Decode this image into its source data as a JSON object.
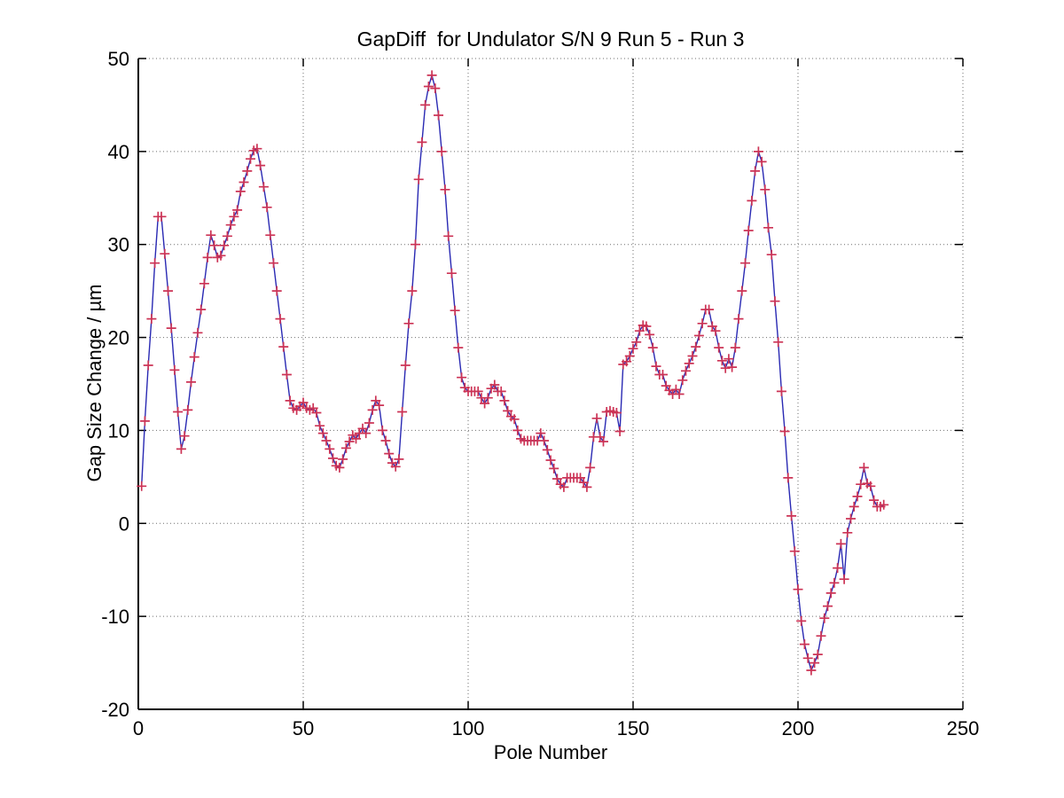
{
  "figure": {
    "background": "#ffffff"
  },
  "chart_data": {
    "type": "line",
    "title": "GapDiff  for Undulator S/N 9 Run 5 - Run 3",
    "xlabel": "Pole Number",
    "ylabel": "Gap Size Change / µm",
    "xlim": [
      0,
      250
    ],
    "ylim": [
      -20,
      50
    ],
    "xticks": [
      0,
      50,
      100,
      150,
      200,
      250
    ],
    "yticks": [
      -20,
      -10,
      0,
      10,
      20,
      30,
      40,
      50
    ],
    "grid": true,
    "grid_style": "dotted",
    "legend": "none",
    "line_color": "#2929b3",
    "marker": "+",
    "marker_color": "#cc3355",
    "axis_color": "#000000",
    "series": [
      {
        "x_start": 1,
        "x_step": 1,
        "y": [
          4,
          11,
          17,
          22,
          28,
          33,
          33,
          29,
          25,
          21,
          16.5,
          12,
          8,
          9.4,
          12.2,
          15.2,
          17.9,
          20.5,
          23,
          25.8,
          28.6,
          31,
          29.9,
          28.6,
          28.8,
          29.9,
          30.9,
          32.1,
          33,
          33.7,
          35.7,
          36.7,
          37.9,
          39.2,
          40.1,
          40.3,
          38.5,
          36.2,
          34,
          31,
          28,
          25,
          22,
          19,
          16,
          13.2,
          12.4,
          12.2,
          12.6,
          13,
          12.4,
          12.2,
          12.4,
          11.9,
          10.5,
          9.7,
          8.9,
          8,
          7,
          6.2,
          6,
          6.9,
          8.1,
          8.8,
          9.5,
          9.1,
          9.7,
          10.2,
          9.7,
          10.8,
          12.2,
          13.2,
          12.7,
          10,
          8.9,
          7.5,
          6.5,
          6.1,
          6.9,
          12,
          17,
          21.5,
          25,
          30,
          37,
          41,
          45,
          47,
          48.2,
          46.8,
          43.9,
          40,
          35.9,
          30.9,
          26.9,
          22.9,
          18.9,
          15.7,
          14.6,
          14.2,
          14.2,
          14.2,
          14.2,
          13.5,
          12.9,
          13.5,
          14.5,
          14.9,
          14.2,
          14.2,
          13.2,
          12.1,
          11.5,
          11.2,
          10,
          9.1,
          8.9,
          8.9,
          8.9,
          8.9,
          8.9,
          9.7,
          8.9,
          7.9,
          6.8,
          5.9,
          4.8,
          4.2,
          3.9,
          4.9,
          4.9,
          4.9,
          4.9,
          4.9,
          4.4,
          3.9,
          6,
          9.3,
          11.3,
          9.3,
          8.8,
          12,
          12.1,
          12,
          11.9,
          9.9,
          17.1,
          17.4,
          18,
          18.8,
          19.5,
          20.7,
          21.3,
          21.2,
          20.3,
          18.9,
          16.9,
          16,
          16,
          14.8,
          14.3,
          13.9,
          14.4,
          13.9,
          15.4,
          16.4,
          17.2,
          18,
          19,
          20.2,
          21.5,
          23,
          23,
          21.2,
          20.7,
          18.9,
          17.5,
          16.7,
          17.7,
          16.8,
          18.9,
          22,
          25,
          28,
          31.5,
          34.7,
          37.9,
          40,
          38.9,
          35.9,
          31.8,
          28.9,
          23.9,
          19.5,
          14.2,
          9.9,
          4.9,
          0.8,
          -3,
          -7.1,
          -10.5,
          -13,
          -14.5,
          -15.8,
          -15,
          -14.1,
          -12.1,
          -10.2,
          -8.9,
          -7.5,
          -6.4,
          -4.8,
          -2.2,
          -6,
          -1,
          0.5,
          1.8,
          2.9,
          4.2,
          6,
          4.3,
          4,
          2.5,
          1.8,
          1.8,
          2
        ]
      }
    ]
  }
}
